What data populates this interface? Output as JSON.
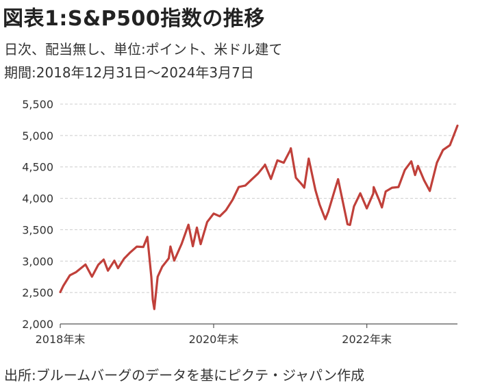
{
  "header": {
    "title": "図表1:S&P500指数の推移",
    "subtitle1": "日次、配当無し、単位:ポイント、米ドル建て",
    "subtitle2": "期間:2018年12月31日～2024年3月7日"
  },
  "footer": {
    "source": "出所:ブルームバーグのデータを基にピクテ・ジャパン作成"
  },
  "colors": {
    "line": "#c0403a",
    "grid": "#cccccc",
    "axis": "#555555"
  },
  "chart_data": {
    "type": "line",
    "title": "",
    "xlabel": "",
    "ylabel": "",
    "grid": true,
    "xlim": [
      "2018-12-31",
      "2024-03-07"
    ],
    "ylim": [
      2000,
      5500
    ],
    "y_ticks": [
      2000,
      2500,
      3000,
      3500,
      4000,
      4500,
      5000,
      5500
    ],
    "y_tick_labels": [
      "2,000",
      "2,500",
      "3,000",
      "3,500",
      "4,000",
      "4,500",
      "5,000",
      "5,500"
    ],
    "x_ticks": [
      "2018-12-31",
      "2020-12-31",
      "2022-12-31"
    ],
    "x_tick_labels": [
      "2018年末",
      "2020年末",
      "2022年末"
    ],
    "series": [
      {
        "values": [
          [
            "2018-12-31",
            2507
          ],
          [
            "2019-01-15",
            2610
          ],
          [
            "2019-02-15",
            2775
          ],
          [
            "2019-03-15",
            2822
          ],
          [
            "2019-04-30",
            2946
          ],
          [
            "2019-05-31",
            2752
          ],
          [
            "2019-06-30",
            2942
          ],
          [
            "2019-07-26",
            3025
          ],
          [
            "2019-08-15",
            2848
          ],
          [
            "2019-09-15",
            3007
          ],
          [
            "2019-10-02",
            2887
          ],
          [
            "2019-10-31",
            3038
          ],
          [
            "2019-11-30",
            3141
          ],
          [
            "2019-12-31",
            3231
          ],
          [
            "2020-01-31",
            3226
          ],
          [
            "2020-02-19",
            3386
          ],
          [
            "2020-03-09",
            2747
          ],
          [
            "2020-03-16",
            2386
          ],
          [
            "2020-03-23",
            2237
          ],
          [
            "2020-04-08",
            2750
          ],
          [
            "2020-04-30",
            2912
          ],
          [
            "2020-05-31",
            3044
          ],
          [
            "2020-06-08",
            3232
          ],
          [
            "2020-06-26",
            3009
          ],
          [
            "2020-07-31",
            3271
          ],
          [
            "2020-09-02",
            3580
          ],
          [
            "2020-09-23",
            3237
          ],
          [
            "2020-10-12",
            3534
          ],
          [
            "2020-10-30",
            3270
          ],
          [
            "2020-11-30",
            3622
          ],
          [
            "2020-12-31",
            3756
          ],
          [
            "2021-01-29",
            3714
          ],
          [
            "2021-02-28",
            3811
          ],
          [
            "2021-03-31",
            3973
          ],
          [
            "2021-04-30",
            4181
          ],
          [
            "2021-05-31",
            4204
          ],
          [
            "2021-06-30",
            4298
          ],
          [
            "2021-07-31",
            4395
          ],
          [
            "2021-08-31",
            4523
          ],
          [
            "2021-09-02",
            4537
          ],
          [
            "2021-09-30",
            4308
          ],
          [
            "2021-10-31",
            4605
          ],
          [
            "2021-11-30",
            4567
          ],
          [
            "2021-12-31",
            4766
          ],
          [
            "2022-01-03",
            4797
          ],
          [
            "2022-01-27",
            4327
          ],
          [
            "2022-02-23",
            4225
          ],
          [
            "2022-03-08",
            4170
          ],
          [
            "2022-03-29",
            4632
          ],
          [
            "2022-04-30",
            4132
          ],
          [
            "2022-05-20",
            3901
          ],
          [
            "2022-06-16",
            3667
          ],
          [
            "2022-06-30",
            3785
          ],
          [
            "2022-07-31",
            4130
          ],
          [
            "2022-08-16",
            4305
          ],
          [
            "2022-09-30",
            3586
          ],
          [
            "2022-10-12",
            3577
          ],
          [
            "2022-10-31",
            3872
          ],
          [
            "2022-11-30",
            4080
          ],
          [
            "2022-12-31",
            3839
          ],
          [
            "2023-01-31",
            4077
          ],
          [
            "2023-02-02",
            4179
          ],
          [
            "2023-02-28",
            3970
          ],
          [
            "2023-03-13",
            3855
          ],
          [
            "2023-03-31",
            4109
          ],
          [
            "2023-04-30",
            4169
          ],
          [
            "2023-05-31",
            4180
          ],
          [
            "2023-06-30",
            4450
          ],
          [
            "2023-07-31",
            4589
          ],
          [
            "2023-08-18",
            4370
          ],
          [
            "2023-09-01",
            4515
          ],
          [
            "2023-09-30",
            4288
          ],
          [
            "2023-10-27",
            4117
          ],
          [
            "2023-11-30",
            4568
          ],
          [
            "2023-12-29",
            4770
          ],
          [
            "2024-01-31",
            4846
          ],
          [
            "2024-02-29",
            5096
          ],
          [
            "2024-03-07",
            5157
          ]
        ]
      }
    ]
  }
}
